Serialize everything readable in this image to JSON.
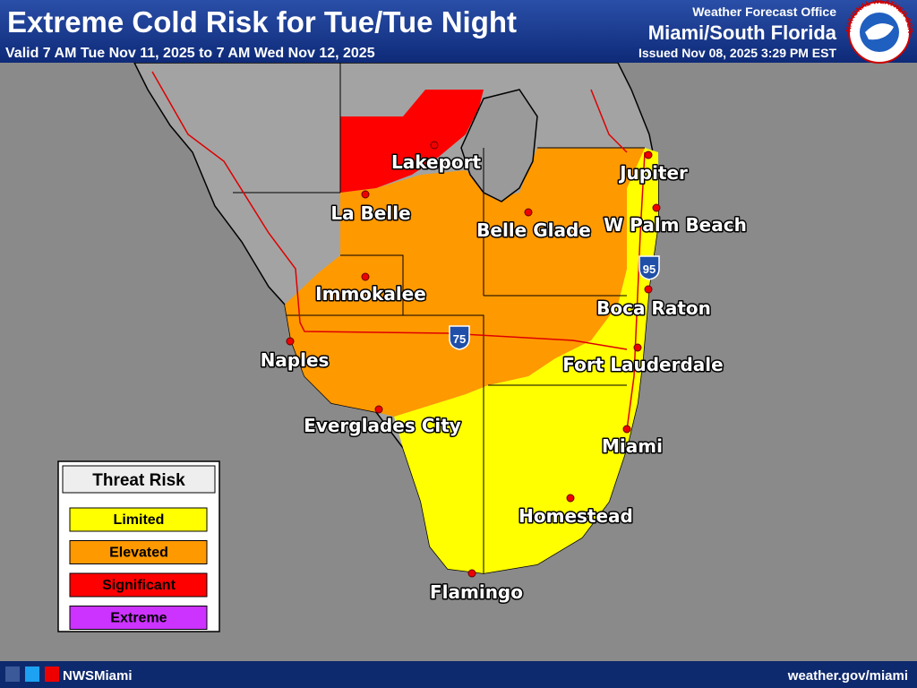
{
  "header": {
    "title": "Extreme Cold Risk for Tue/Tue Night",
    "valid": "Valid 7 AM Tue Nov 11, 2025 to 7 AM Wed Nov 12, 2025",
    "office_label": "Weather Forecast Office",
    "office": "Miami/South Florida",
    "issued": "Issued Nov 08, 2025 3:29 PM EST",
    "logo_text": "NATIONAL WEATHER SERVICE"
  },
  "legend": {
    "title": "Threat Risk",
    "items": [
      {
        "label": "Limited",
        "color": "#ffff00"
      },
      {
        "label": "Elevated",
        "color": "#ff9900"
      },
      {
        "label": "Significant",
        "color": "#ff0000"
      },
      {
        "label": "Extreme",
        "color": "#cc33ff"
      }
    ]
  },
  "cities": [
    "Lakeport",
    "La Belle",
    "Belle Glade",
    "Jupiter",
    "W Palm Beach",
    "Immokalee",
    "Boca Raton",
    "Naples",
    "Fort Lauderdale",
    "Everglades City",
    "Miami",
    "Homestead",
    "Flamingo"
  ],
  "highway_shields": [
    "95",
    "75"
  ],
  "footer": {
    "social": "NWSMiami",
    "website": "weather.gov/miami"
  }
}
